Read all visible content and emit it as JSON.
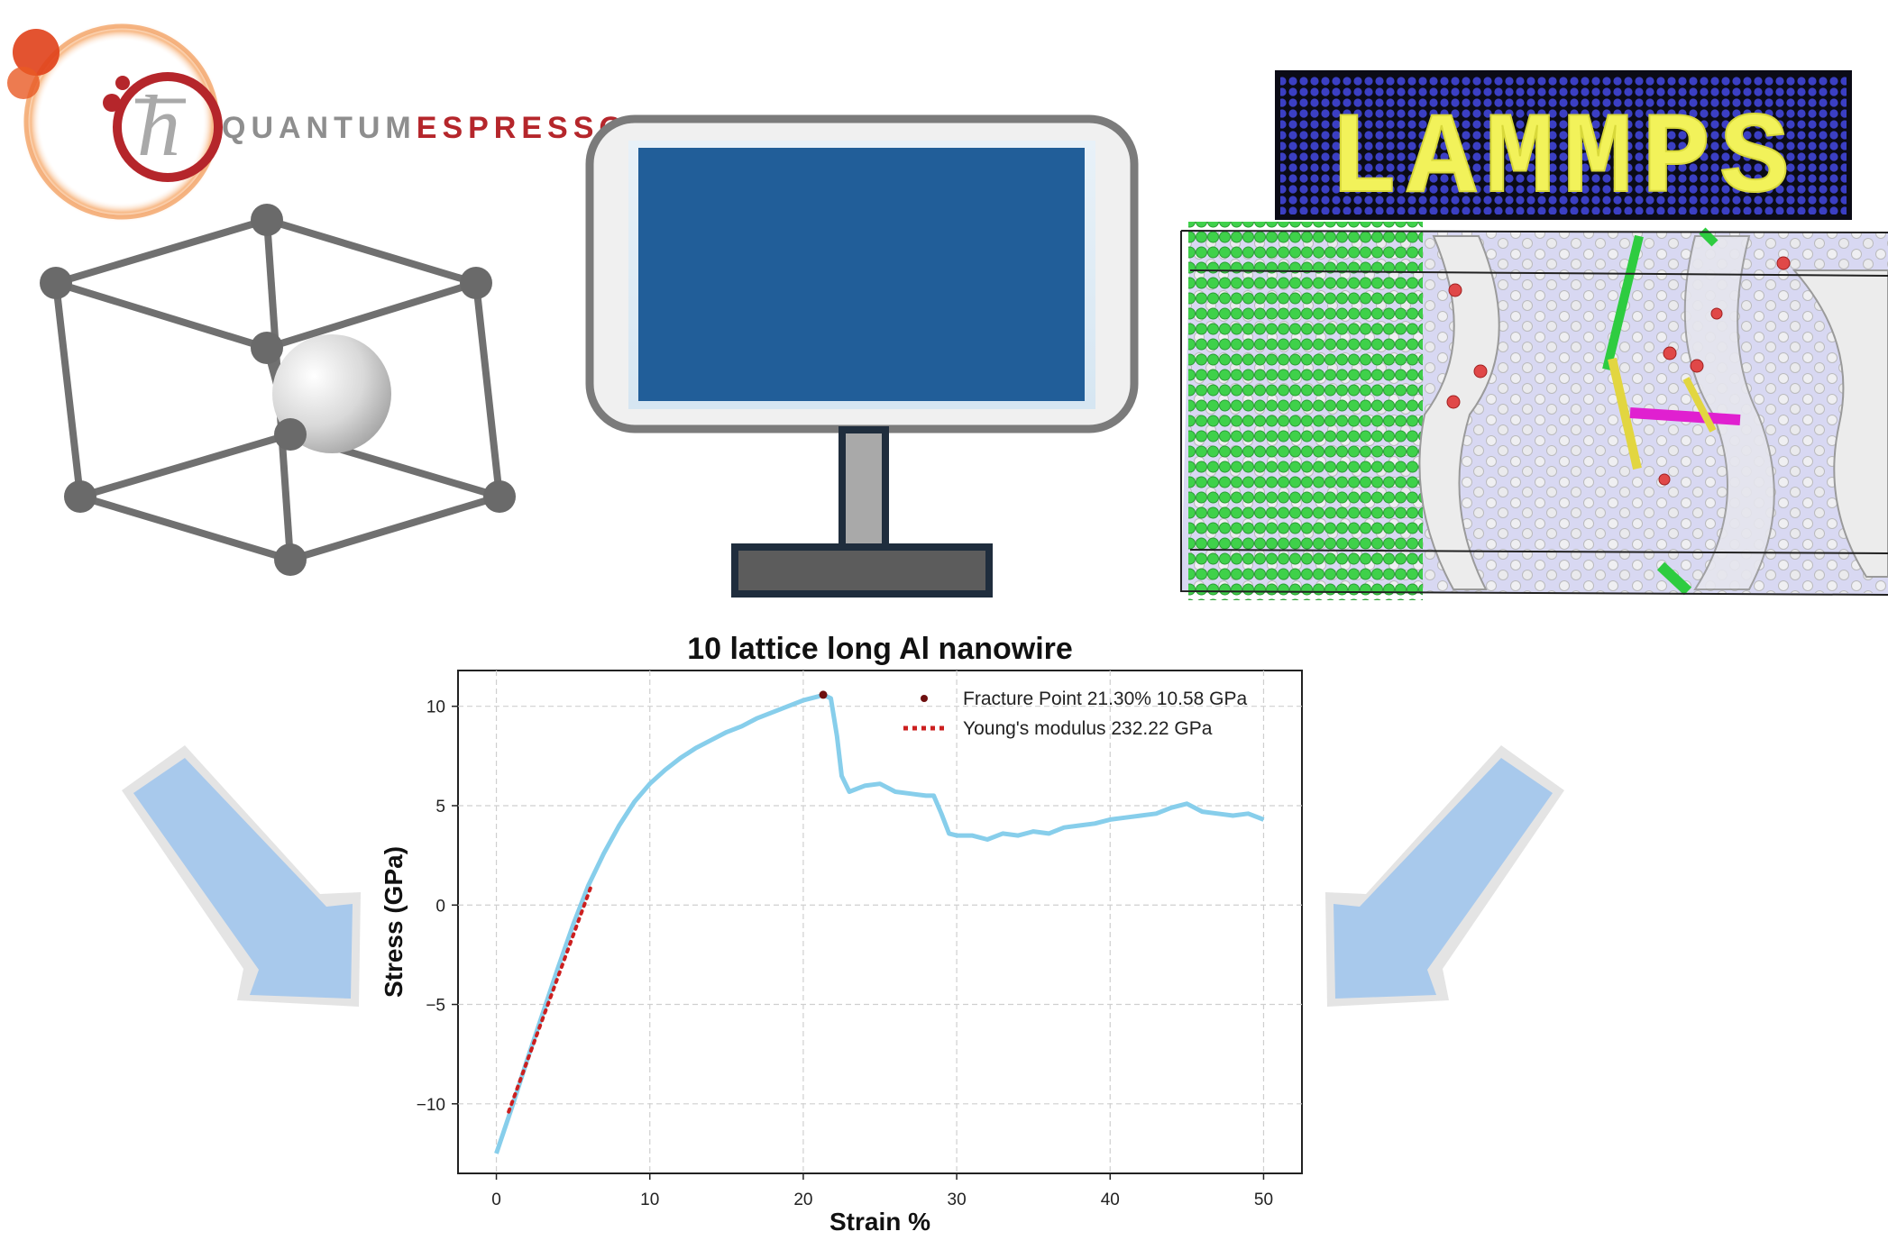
{
  "logos": {
    "quantum_espresso": "QUANTUMESPRESSO",
    "lammps": "LAMMPS"
  },
  "colors": {
    "qe_red": "#b5262b",
    "qe_gray": "#8e8e8e",
    "monitor_screen": "#215e99",
    "monitor_frame": "#7b7b7b",
    "arrow_fill": "#a8c9ec",
    "curve": "#87ceeb",
    "modulus_line": "#cc1f1f",
    "fracture_point": "#6e0f0f",
    "atom_green": "#3fd14a",
    "lammps_yellow": "#f2f25a",
    "lammps_blue": "#3b3fc4"
  },
  "icons": {
    "crystal": "unit-cell-icon",
    "computer": "monitor-icon",
    "arrow_left": "arrow-down-right-icon",
    "arrow_right": "arrow-down-left-icon"
  },
  "chart_data": {
    "type": "line",
    "title": "10 lattice long Al nanowire",
    "xlabel": "Strain %",
    "ylabel": "Stress (GPa)",
    "xlim": [
      -2.5,
      52.5
    ],
    "ylim": [
      -13.5,
      11.8
    ],
    "xticks": [
      "0",
      "10",
      "20",
      "30",
      "40",
      "50"
    ],
    "yticks": [
      "10",
      "5",
      "0",
      "−5",
      "−10"
    ],
    "xtick_values": [
      0,
      10,
      20,
      30,
      40,
      50
    ],
    "ytick_values": [
      10,
      5,
      0,
      -5,
      -10
    ],
    "grid": true,
    "legend_position": "top-right",
    "legend": [
      "Fracture Point 21.30% 10.58 GPa",
      "Young's modulus 232.22 GPa"
    ],
    "series": [
      {
        "name": "Stress",
        "x": [
          0,
          1,
          2,
          3,
          4,
          5,
          6,
          7,
          8,
          9,
          10,
          11,
          12,
          13,
          14,
          15,
          16,
          17,
          18,
          19,
          20,
          21,
          21.3,
          21.8,
          22.2,
          22.5,
          23,
          24,
          25,
          26,
          27,
          28,
          28.5,
          29,
          29.5,
          30,
          31,
          32,
          33,
          34,
          35,
          36,
          37,
          38,
          39,
          40,
          41,
          42,
          43,
          44,
          45,
          46,
          47,
          48,
          49,
          50
        ],
        "y": [
          -12.5,
          -10.2,
          -7.8,
          -5.5,
          -3.2,
          -1.0,
          1.0,
          2.6,
          4.0,
          5.2,
          6.1,
          6.8,
          7.4,
          7.9,
          8.3,
          8.7,
          9.0,
          9.4,
          9.7,
          10.0,
          10.3,
          10.5,
          10.58,
          10.4,
          8.5,
          6.5,
          5.7,
          6.0,
          6.1,
          5.7,
          5.6,
          5.5,
          5.5,
          4.6,
          3.6,
          3.5,
          3.5,
          3.3,
          3.6,
          3.5,
          3.7,
          3.6,
          3.9,
          4.0,
          4.1,
          4.3,
          4.4,
          4.5,
          4.6,
          4.9,
          5.1,
          4.7,
          4.6,
          4.5,
          4.6,
          4.3
        ]
      },
      {
        "name": "Young's modulus 232.22 GPa",
        "x": [
          0.8,
          6.2
        ],
        "y": [
          -10.4,
          1.0
        ]
      },
      {
        "name": "Fracture Point 21.30% 10.58 GPa",
        "x": [
          21.3
        ],
        "y": [
          10.58
        ]
      }
    ]
  }
}
